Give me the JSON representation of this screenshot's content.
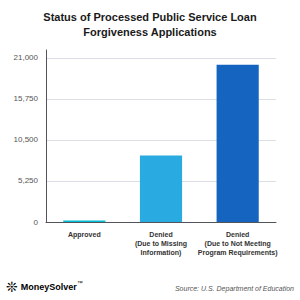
{
  "chart_data": {
    "type": "bar",
    "title": "Status of Processed Public Service Loan\nForgiveness Applications",
    "categories": [
      "Approved",
      "Denied\n(Due to Missing\nInformation)",
      "Denied\n(Due to Not Meeting\nProgram Requirements)"
    ],
    "values": [
      200,
      8500,
      20100
    ],
    "colors": [
      "#00BCD4",
      "#29ABE2",
      "#1565C0"
    ],
    "ylim": [
      0,
      22000
    ],
    "yticks": [
      0,
      {
        "value": 5250,
        "label": "5,250"
      },
      {
        "value": 10500,
        "label": "10,500"
      },
      {
        "value": 15750,
        "label": "15,750"
      },
      {
        "value": 21000,
        "label": "21,000"
      }
    ],
    "grid": true,
    "annotations": [
      "❊",
      "MoneySolver",
      "™",
      "Source: U.S. Department of Education"
    ]
  }
}
